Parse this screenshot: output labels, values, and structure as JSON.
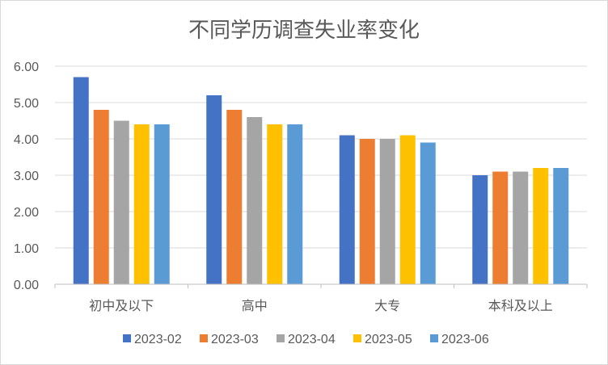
{
  "chart_data": {
    "type": "bar",
    "title": "不同学历调查失业率变化",
    "xlabel": "",
    "ylabel": "",
    "categories": [
      "初中及以下",
      "高中",
      "大专",
      "本科及以上"
    ],
    "series": [
      {
        "name": "2023-02",
        "color": "#4472C4",
        "values": [
          5.7,
          5.2,
          4.1,
          3.0
        ]
      },
      {
        "name": "2023-03",
        "color": "#ED7D31",
        "values": [
          4.8,
          4.8,
          4.0,
          3.1
        ]
      },
      {
        "name": "2023-04",
        "color": "#A5A5A5",
        "values": [
          4.5,
          4.6,
          4.0,
          3.1
        ]
      },
      {
        "name": "2023-05",
        "color": "#FFC000",
        "values": [
          4.4,
          4.4,
          4.1,
          3.2
        ]
      },
      {
        "name": "2023-06",
        "color": "#5B9BD5",
        "values": [
          4.4,
          4.4,
          3.9,
          3.2
        ]
      }
    ],
    "ylim": [
      0,
      6
    ],
    "yticks": [
      "0.00",
      "1.00",
      "2.00",
      "3.00",
      "4.00",
      "5.00",
      "6.00"
    ],
    "grid": true,
    "legend": "bottom"
  }
}
